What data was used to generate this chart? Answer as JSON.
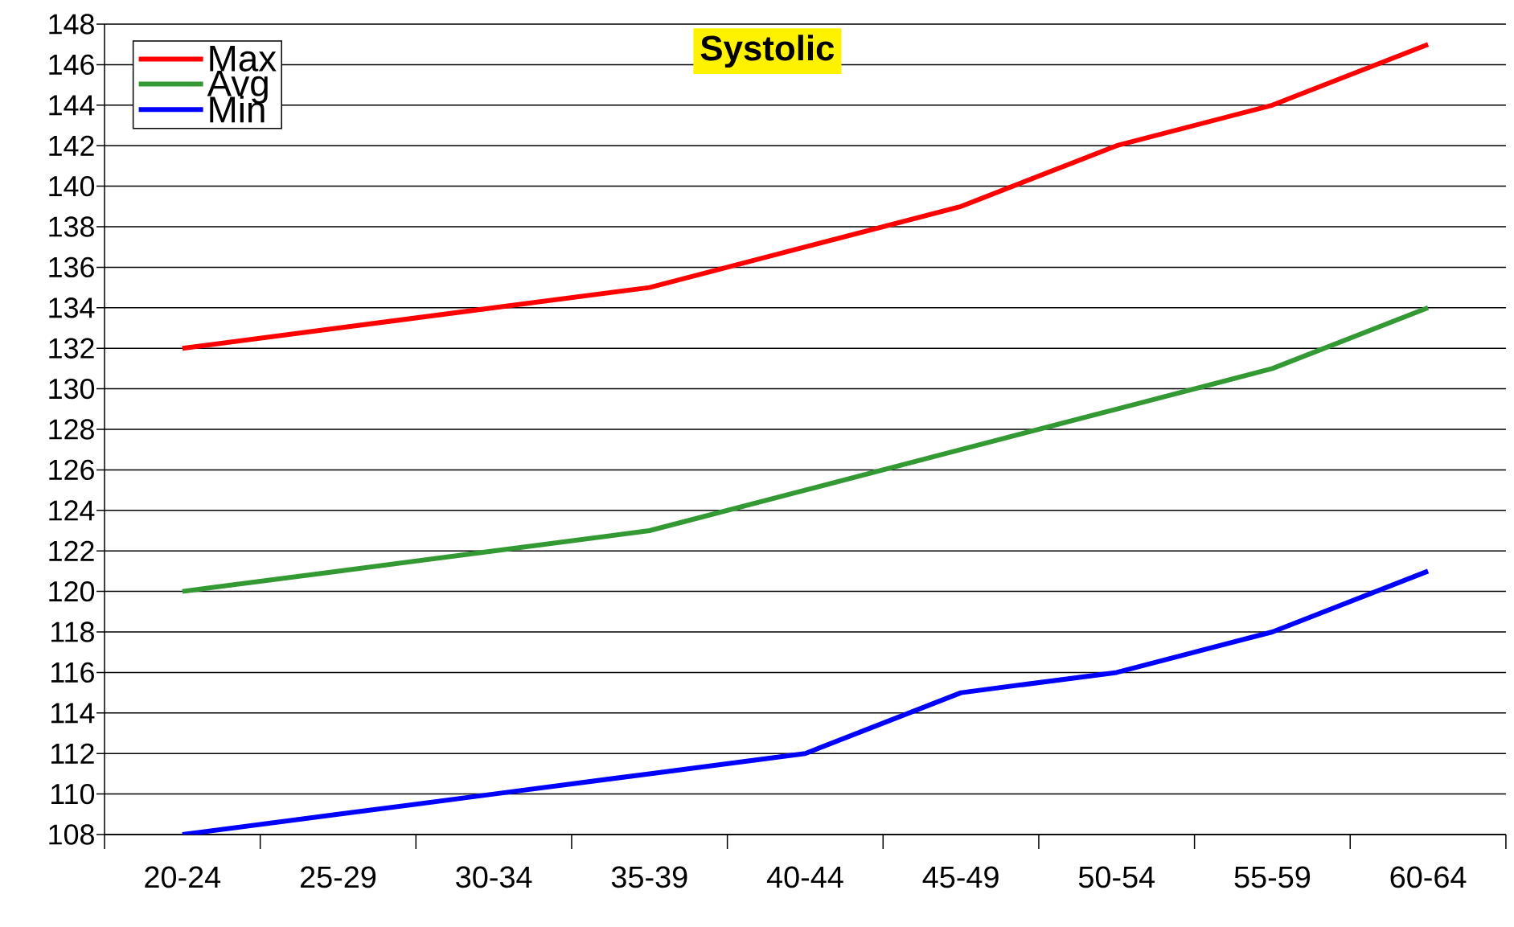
{
  "chart_data": {
    "type": "line",
    "title": "Systolic",
    "categories": [
      "20-24",
      "25-29",
      "30-34",
      "35-39",
      "40-44",
      "45-49",
      "50-54",
      "55-59",
      "60-64"
    ],
    "series": [
      {
        "name": "Max",
        "color": "#ff0000",
        "values": [
          132,
          133,
          134,
          135,
          137,
          139,
          142,
          144,
          147
        ]
      },
      {
        "name": "Avg",
        "color": "#339933",
        "values": [
          120,
          121,
          122,
          123,
          125,
          127,
          129,
          131,
          134
        ]
      },
      {
        "name": "Min",
        "color": "#0000ff",
        "values": [
          108,
          109,
          110,
          111,
          112,
          115,
          116,
          118,
          121
        ]
      }
    ],
    "ylim": [
      108,
      148
    ],
    "yticks": [
      108,
      110,
      112,
      114,
      116,
      118,
      120,
      122,
      124,
      126,
      128,
      130,
      132,
      134,
      136,
      138,
      140,
      142,
      144,
      146,
      148
    ],
    "grid": "y",
    "legend": "top left",
    "marker": "none",
    "line_style": "solid"
  }
}
